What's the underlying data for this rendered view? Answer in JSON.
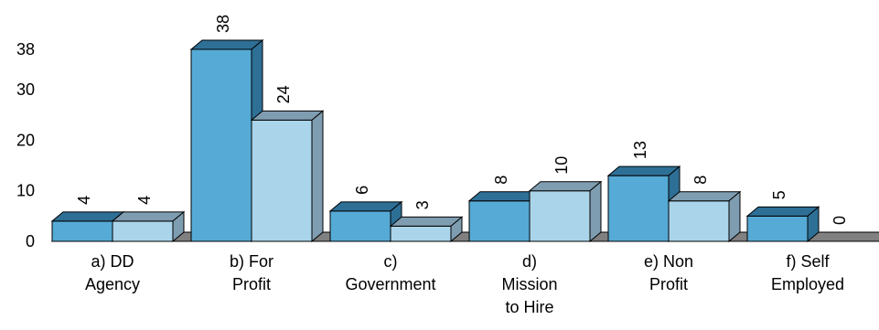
{
  "chart_data": {
    "type": "bar",
    "title": "",
    "xlabel": "",
    "ylabel": "",
    "categories": [
      [
        "a) DD",
        "Agency"
      ],
      [
        "b) For",
        "Profit"
      ],
      [
        "c)",
        "Government"
      ],
      [
        "d)",
        "Mission",
        "to Hire"
      ],
      [
        "e) Non",
        "Profit"
      ],
      [
        "f) Self",
        "Employed"
      ]
    ],
    "series": [
      {
        "values": [
          4,
          38,
          6,
          8,
          13,
          5
        ],
        "color": "#56aad6",
        "top_color": "#2e6f96",
        "side_color": "#2e6f96"
      },
      {
        "values": [
          4,
          24,
          3,
          10,
          8,
          0
        ],
        "color": "#aad4ea",
        "top_color": "#7f9db1",
        "side_color": "#7f9db1"
      }
    ],
    "y_ticks": [
      0,
      10,
      20,
      30,
      38
    ],
    "ylim": [
      0,
      38
    ],
    "three_d": true,
    "floor_color": "#808080",
    "grid": false,
    "legend": "none"
  }
}
